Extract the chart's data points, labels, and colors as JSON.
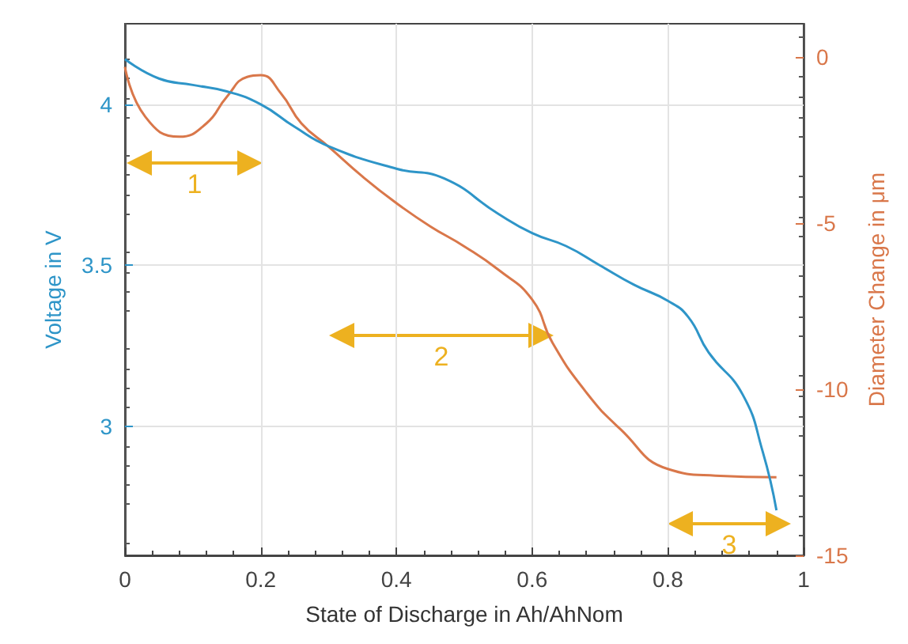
{
  "chart_data": {
    "type": "line",
    "xlabel": "State of Discharge in Ah/AhNom",
    "ylabel": "Voltage in V",
    "y2label": "Diameter Change in μm",
    "xlim": [
      0,
      1
    ],
    "xticks": [
      0,
      0.2,
      0.4,
      0.6,
      0.8,
      1
    ],
    "ylim": [
      2.6,
      4.25
    ],
    "yticks": [
      3,
      3.5,
      4
    ],
    "y2lim": [
      -15,
      1
    ],
    "y2ticks": [
      -15,
      -10,
      -5,
      0
    ],
    "grid": true,
    "marker": "none",
    "line_style": "solid",
    "series": [
      {
        "color": "#2e95c8",
        "x": [
          0,
          0.05,
          0.1,
          0.15,
          0.2,
          0.25,
          0.3,
          0.4,
          0.47,
          0.55,
          0.6,
          0.65,
          0.7,
          0.75,
          0.8,
          0.83,
          0.86,
          0.91,
          0.94,
          0.96
        ],
        "values": [
          4.14,
          4.08,
          4.06,
          4.04,
          4.0,
          3.93,
          3.87,
          3.8,
          3.77,
          3.66,
          3.6,
          3.56,
          3.5,
          3.44,
          3.39,
          3.34,
          3.23,
          3.1,
          2.92,
          2.74
        ]
      },
      {
        "axis": "y2",
        "color": "#d9774a",
        "x": [
          0,
          0.03,
          0.08,
          0.12,
          0.15,
          0.18,
          0.2,
          0.23,
          0.26,
          0.3,
          0.35,
          0.4,
          0.45,
          0.5,
          0.55,
          0.6,
          0.63,
          0.68,
          0.73,
          0.8,
          0.87,
          0.96
        ],
        "values": [
          -0.3,
          -1.8,
          -2.4,
          -2.0,
          -1.2,
          -0.6,
          -0.55,
          -1.1,
          -2.0,
          -2.7,
          -3.6,
          -4.4,
          -5.1,
          -5.7,
          -6.4,
          -7.3,
          -8.6,
          -10.1,
          -11.2,
          -12.4,
          -12.6,
          -12.65
        ]
      }
    ],
    "annotations": [
      "1",
      "2",
      "3"
    ]
  }
}
